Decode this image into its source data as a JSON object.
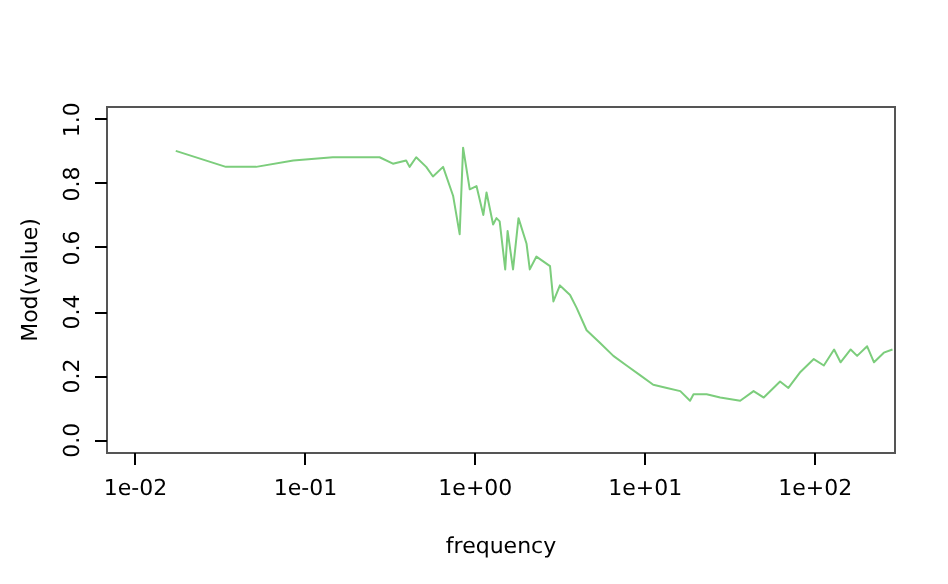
{
  "chart_data": {
    "type": "line",
    "xlabel": "frequency",
    "ylabel": "Mod(value)",
    "log": "x",
    "grid": false,
    "xlim": [
      0.0068,
      295
    ],
    "ylim": [
      -0.04,
      1.04
    ],
    "xticks": [
      {
        "value": 0.01,
        "label": "1e-02"
      },
      {
        "value": 0.1,
        "label": "1e-01"
      },
      {
        "value": 1,
        "label": "1e+00"
      },
      {
        "value": 10,
        "label": "1e+01"
      },
      {
        "value": 100,
        "label": "1e+02"
      }
    ],
    "yticks": [
      {
        "value": 0,
        "label": "0.0"
      },
      0.2,
      0.4,
      0.6,
      0.8,
      {
        "value": 1,
        "label": "1.0"
      }
    ],
    "series": [
      {
        "color": "#7ccd7c",
        "x": [
          0.0175,
          0.0345,
          0.052,
          0.086,
          0.147,
          0.277,
          0.332,
          0.397,
          0.416,
          0.455,
          0.521,
          0.571,
          0.655,
          0.75,
          0.82,
          0.859,
          0.94,
          1.03,
          1.13,
          1.18,
          1.29,
          1.35,
          1.41,
          1.52,
          1.57,
          1.69,
          1.82,
          2.03,
          2.12,
          2.32,
          2.79,
          2.92,
          3.19,
          3.66,
          4.0,
          4.58,
          5.5,
          6.58,
          7.87,
          9.44,
          11.3,
          13.6,
          16.3,
          18.6,
          19.5,
          23.3,
          28.0,
          36.7,
          44,
          50.5,
          63,
          70.5,
          83,
          99.5,
          114,
          131,
          143,
          164,
          179,
          205,
          225,
          257,
          289
        ],
        "values": [
          0.9,
          0.85,
          0.85,
          0.87,
          0.88,
          0.88,
          0.86,
          0.87,
          0.85,
          0.88,
          0.85,
          0.82,
          0.85,
          0.76,
          0.64,
          0.91,
          0.78,
          0.79,
          0.7,
          0.77,
          0.67,
          0.69,
          0.68,
          0.53,
          0.65,
          0.53,
          0.69,
          0.61,
          0.53,
          0.57,
          0.54,
          0.43,
          0.48,
          0.45,
          0.41,
          0.34,
          0.3,
          0.26,
          0.23,
          0.2,
          0.17,
          0.16,
          0.15,
          0.12,
          0.14,
          0.14,
          0.13,
          0.12,
          0.15,
          0.13,
          0.18,
          0.16,
          0.21,
          0.25,
          0.23,
          0.28,
          0.24,
          0.28,
          0.26,
          0.29,
          0.24,
          0.27,
          0.28
        ]
      }
    ]
  }
}
